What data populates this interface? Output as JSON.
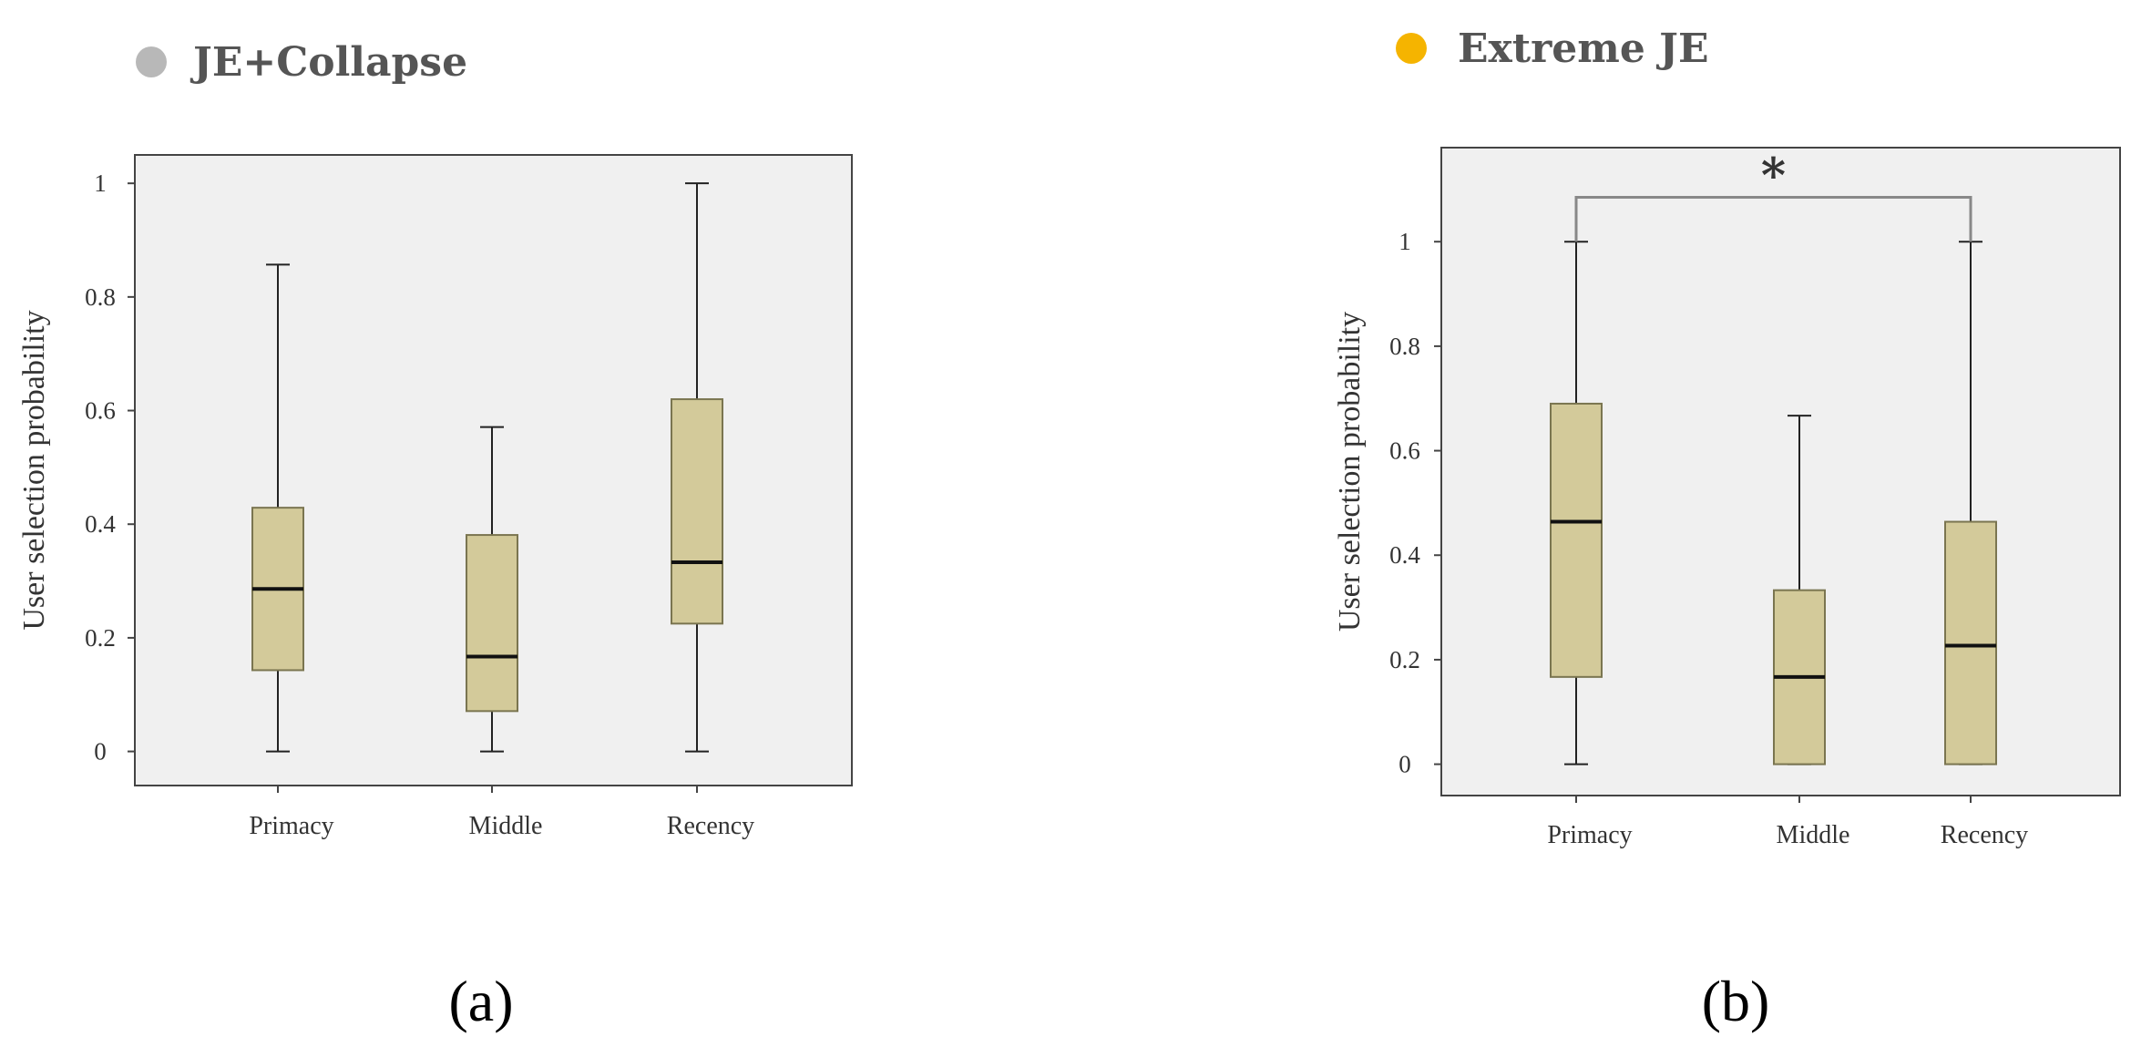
{
  "colors": {
    "panel_bg": "#f0f0f0",
    "box_fill": "#d3ca9a",
    "box_stroke": "#7a7550",
    "median": "#111111",
    "whisker": "#222222",
    "frame": "#444444",
    "sig_bracket": "#888888"
  },
  "chart_data": [
    {
      "type": "box",
      "panel_label": "(a)",
      "legend": {
        "label": "JE+Collapse",
        "marker_color": "#b8b8b8"
      },
      "ylabel": "User selection probability",
      "ylim": [
        -0.06,
        1.05
      ],
      "yticks": [
        0,
        0.2,
        0.4,
        0.6,
        0.8,
        1
      ],
      "ytick_labels": [
        "0",
        "0.2",
        "0.4",
        "0.6",
        "0.8",
        "1"
      ],
      "categories": [
        "Primacy",
        "Middle",
        "Recency"
      ],
      "boxes": [
        {
          "min": 0,
          "q1": 0.143,
          "median": 0.286,
          "q3": 0.429,
          "max": 0.857
        },
        {
          "min": 0,
          "q1": 0.071,
          "median": 0.167,
          "q3": 0.381,
          "max": 0.571
        },
        {
          "min": 0,
          "q1": 0.225,
          "median": 0.333,
          "q3": 0.62,
          "max": 1.0
        }
      ],
      "significance": []
    },
    {
      "type": "box",
      "panel_label": "(b)",
      "legend": {
        "label": "Extreme JE",
        "marker_color": "#f5b400"
      },
      "ylabel": "User selection probability",
      "ylim": [
        -0.06,
        1.18
      ],
      "yticks": [
        0,
        0.2,
        0.4,
        0.6,
        0.8,
        1
      ],
      "ytick_labels": [
        "0",
        "0.2",
        "0.4",
        "0.6",
        "0.8",
        "1"
      ],
      "categories": [
        "Primacy",
        "Middle",
        "Recency"
      ],
      "boxes": [
        {
          "min": 0,
          "q1": 0.167,
          "median": 0.464,
          "q3": 0.69,
          "max": 1.0
        },
        {
          "min": 0,
          "q1": 0.0,
          "median": 0.167,
          "q3": 0.333,
          "max": 0.667
        },
        {
          "min": 0,
          "q1": 0.0,
          "median": 0.227,
          "q3": 0.464,
          "max": 1.0
        }
      ],
      "significance": [
        {
          "from": 0,
          "to": 2,
          "y": 1.085,
          "label": "*"
        }
      ]
    }
  ]
}
